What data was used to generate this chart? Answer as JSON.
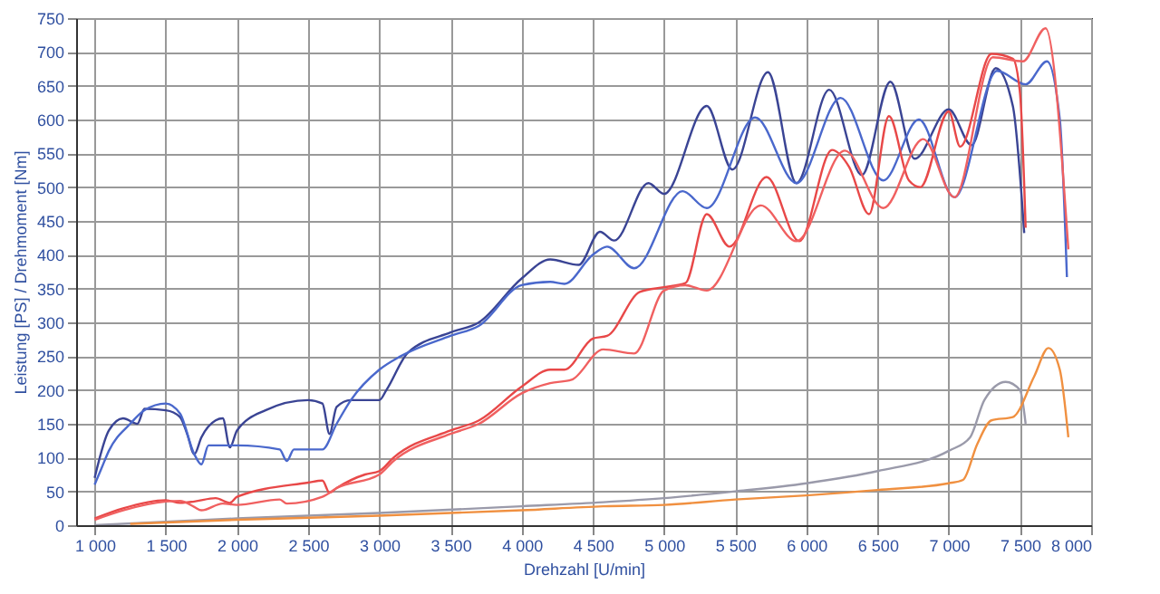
{
  "chart_data": {
    "type": "line",
    "xlabel": "Drehzahl [U/min]",
    "ylabel": "Leistung [PS] / Drehmoment [Nm]",
    "xlim": [
      870,
      8000
    ],
    "ylim": [
      0,
      750
    ],
    "xticks": [
      {
        "value": 1000,
        "label": "1 000"
      },
      {
        "value": 1500,
        "label": "1 500"
      },
      {
        "value": 2000,
        "label": "2 000"
      },
      {
        "value": 2500,
        "label": "2 500"
      },
      {
        "value": 3000,
        "label": "3 000"
      },
      {
        "value": 3500,
        "label": "3 500"
      },
      {
        "value": 4000,
        "label": "4 000"
      },
      {
        "value": 4500,
        "label": "4 500"
      },
      {
        "value": 5000,
        "label": "5 000"
      },
      {
        "value": 5500,
        "label": "5 500"
      },
      {
        "value": 6000,
        "label": "6 000"
      },
      {
        "value": 6500,
        "label": "6 500"
      },
      {
        "value": 7000,
        "label": "7 000"
      },
      {
        "value": 7500,
        "label": "7 500"
      },
      {
        "value": 8000,
        "label": "8 000"
      }
    ],
    "yticks": [
      0,
      50,
      100,
      150,
      200,
      250,
      300,
      350,
      400,
      450,
      500,
      550,
      600,
      650,
      700,
      750
    ],
    "grid": true,
    "marker": "none",
    "line_style": "solid",
    "series": [
      {
        "color": "#3a4494",
        "x": [
          1000,
          1100,
          1200,
          1300,
          1350,
          1500,
          1600,
          1650,
          1700,
          1750,
          1850,
          1900,
          1950,
          2000,
          2200,
          2500,
          2600,
          2650,
          2700,
          2800,
          3000,
          3050,
          3200,
          3500,
          3700,
          4000,
          4200,
          4400,
          4550,
          4650,
          4890,
          5000,
          5300,
          5480,
          5730,
          5930,
          6160,
          6390,
          6590,
          6760,
          7000,
          7160,
          7330,
          7450,
          7530
        ],
        "values": [
          70,
          140,
          158,
          150,
          172,
          170,
          160,
          135,
          105,
          130,
          155,
          158,
          115,
          140,
          170,
          185,
          180,
          135,
          175,
          185,
          185,
          200,
          255,
          285,
          300,
          365,
          393,
          385,
          434,
          421,
          506,
          490,
          620,
          526,
          670,
          506,
          644,
          518,
          656,
          542,
          615,
          562,
          676,
          620,
          432
        ]
      },
      {
        "color": "#4a68cc",
        "x": [
          1000,
          1050,
          1100,
          1250,
          1350,
          1500,
          1600,
          1700,
          1750,
          1800,
          2000,
          2300,
          2350,
          2400,
          2600,
          2700,
          2800,
          3000,
          3150,
          3500,
          3700,
          4000,
          4200,
          4300,
          4500,
          4600,
          4790,
          5130,
          5300,
          5640,
          5930,
          6240,
          6540,
          6790,
          7040,
          7340,
          7540,
          7690,
          7780,
          7830
        ],
        "values": [
          60,
          85,
          110,
          150,
          170,
          180,
          165,
          105,
          90,
          118,
          118,
          112,
          95,
          112,
          112,
          150,
          185,
          230,
          250,
          280,
          295,
          355,
          360,
          357,
          400,
          412,
          380,
          494,
          469,
          603,
          506,
          632,
          510,
          600,
          485,
          672,
          652,
          686,
          600,
          367
        ]
      },
      {
        "color": "#e84848",
        "x": [
          1000,
          1200,
          1500,
          1600,
          1700,
          1850,
          1950,
          2000,
          2500,
          2600,
          2650,
          2700,
          2900,
          3000,
          3100,
          3500,
          3700,
          4000,
          4200,
          4300,
          4500,
          4600,
          4830,
          5000,
          5150,
          5300,
          5460,
          5720,
          5950,
          6180,
          6300,
          6440,
          6580,
          6720,
          6800,
          7000,
          7080,
          7300,
          7450,
          7500,
          7540
        ],
        "values": [
          10,
          25,
          37,
          33,
          35,
          40,
          33,
          42,
          63,
          66,
          48,
          55,
          75,
          80,
          100,
          140,
          155,
          205,
          230,
          230,
          276,
          280,
          345,
          352,
          358,
          460,
          412,
          515,
          420,
          555,
          530,
          460,
          605,
          510,
          500,
          612,
          560,
          697,
          690,
          640,
          440
        ]
      },
      {
        "color": "#f06060",
        "x": [
          1000,
          1200,
          1500,
          1600,
          1700,
          1750,
          1900,
          2000,
          2300,
          2350,
          2600,
          2700,
          3000,
          3100,
          3500,
          3700,
          4000,
          4200,
          4350,
          4573,
          4790,
          5000,
          5150,
          5300,
          5680,
          5930,
          6270,
          6540,
          6820,
          7040,
          7310,
          7520,
          7680,
          7840
        ],
        "values": [
          8,
          22,
          35,
          36,
          27,
          22,
          32,
          30,
          38,
          32,
          42,
          55,
          75,
          95,
          135,
          150,
          195,
          210,
          215,
          260,
          254,
          347,
          355,
          347,
          473,
          420,
          554,
          469,
          571,
          485,
          692,
          686,
          735,
          408
        ]
      },
      {
        "color": "#9a9aaa",
        "x": [
          1000,
          2000,
          3000,
          4000,
          4573,
          5000,
          5500,
          6000,
          6500,
          7000,
          7150,
          7250,
          7400,
          7500,
          7540
        ],
        "values": [
          0,
          10,
          18,
          28,
          34,
          40,
          50,
          62,
          80,
          110,
          130,
          185,
          212,
          200,
          150
        ]
      },
      {
        "color": "#f09040",
        "x": [
          1250,
          2000,
          3000,
          4000,
          4573,
          5000,
          5500,
          6000,
          6500,
          7000,
          7100,
          7200,
          7300,
          7450,
          7600,
          7700,
          7780,
          7840
        ],
        "values": [
          2,
          8,
          14,
          22,
          28,
          30,
          38,
          44,
          52,
          62,
          67,
          120,
          155,
          160,
          220,
          262,
          230,
          130
        ]
      }
    ]
  }
}
